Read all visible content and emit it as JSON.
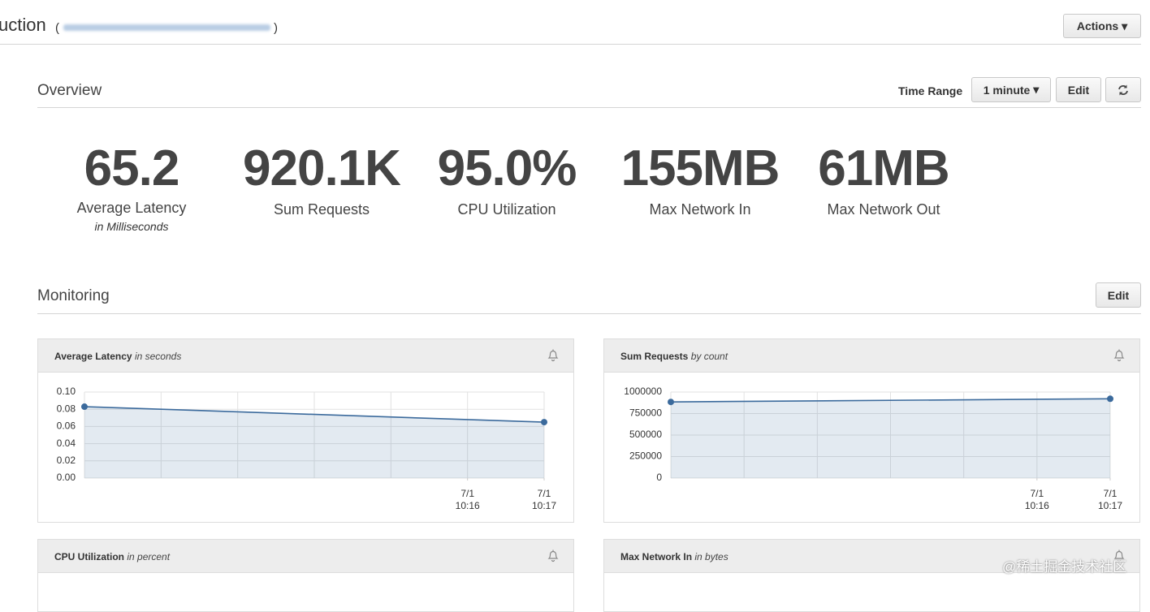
{
  "header": {
    "title": "uction",
    "actions": "Actions"
  },
  "overview": {
    "title": "Overview",
    "time_range_label": "Time Range",
    "time_range": "1 minute",
    "edit": "Edit",
    "metrics": [
      {
        "value": "65.2",
        "label": "Average Latency",
        "note": "in Milliseconds"
      },
      {
        "value": "920.1K",
        "label": "Sum Requests"
      },
      {
        "value": "95.0%",
        "label": "CPU Utilization"
      },
      {
        "value": "155MB",
        "label": "Max Network In"
      },
      {
        "value": "61MB",
        "label": "Max Network Out"
      }
    ]
  },
  "monitoring": {
    "title": "Monitoring",
    "edit": "Edit",
    "panels": [
      {
        "title": "Average Latency",
        "unit": "in seconds",
        "chart": {
          "type": "line",
          "x": [
            0,
            6
          ],
          "values": [
            0.083,
            0.065
          ],
          "xlim": [
            0,
            6
          ],
          "xticks": [
            {
              "value": 5,
              "label": "7/1\n10:16"
            },
            {
              "value": 6,
              "label": "7/1\n10:17"
            }
          ],
          "ylim": [
            0,
            0.1
          ],
          "yticks": [
            {
              "value": 0,
              "label": "0.00"
            },
            0.02,
            0.04,
            0.06,
            0.08,
            {
              "value": 0.1,
              "label": "0.10"
            }
          ],
          "color": "#3b6a9c",
          "grid": true
        }
      },
      {
        "title": "Sum Requests",
        "unit": "by count",
        "chart": {
          "type": "line",
          "x": [
            0,
            6
          ],
          "values": [
            885000,
            922000
          ],
          "xlim": [
            0,
            6
          ],
          "xticks": [
            {
              "value": 5,
              "label": "7/1\n10:16"
            },
            {
              "value": 6,
              "label": "7/1\n10:17"
            }
          ],
          "ylim": [
            0,
            1000000
          ],
          "yticks": [
            0,
            250000,
            500000,
            750000,
            1000000
          ],
          "color": "#3b6a9c",
          "grid": true
        }
      },
      {
        "title": "CPU Utilization",
        "unit": "in percent"
      },
      {
        "title": "Max Network In",
        "unit": "in bytes"
      }
    ]
  },
  "watermark": "@稀土掘金技术社区"
}
